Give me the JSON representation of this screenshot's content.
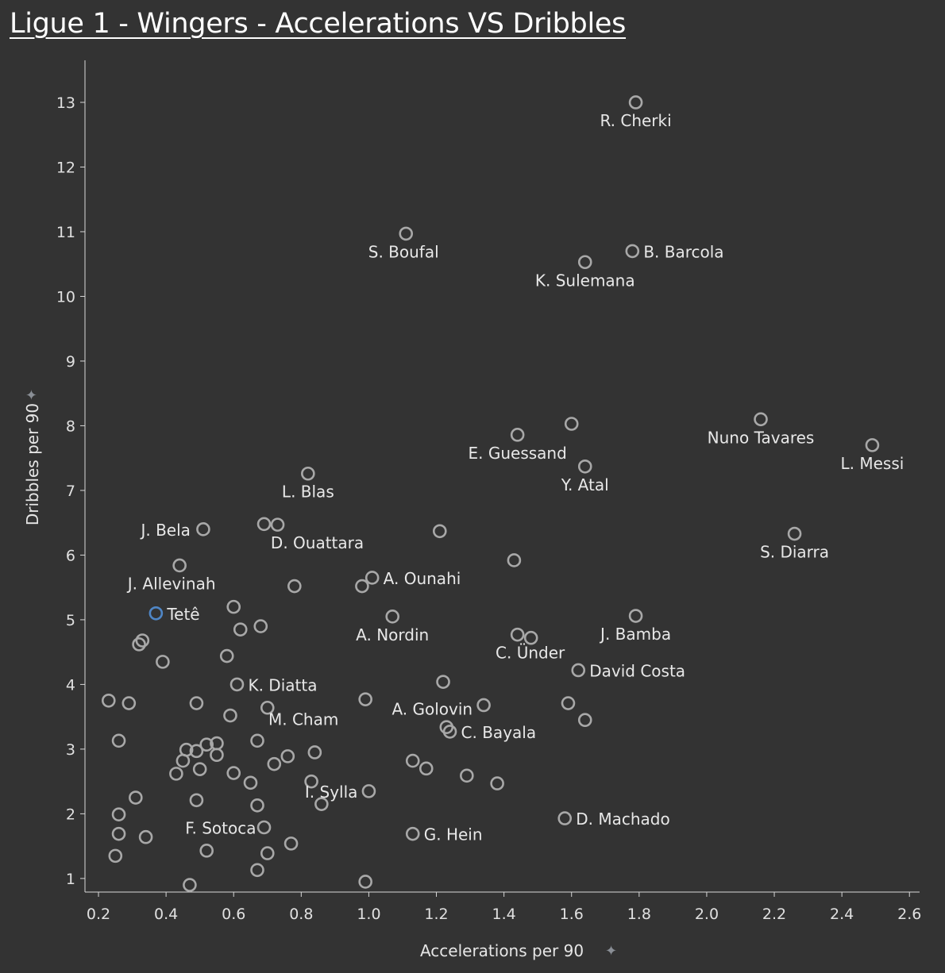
{
  "title": "Ligue 1 - Wingers - Accelerations VS Dribbles",
  "chart_data": {
    "type": "scatter",
    "title": "Ligue 1 - Wingers - Accelerations VS Dribbles",
    "xlabel": "Accelerations per 90",
    "ylabel": "Dribbles per 90",
    "pin_icon": "pin-icon",
    "xlim": [
      0.16,
      2.63
    ],
    "ylim": [
      0.79,
      13.65
    ],
    "xticks": [
      "0.2",
      "0.4",
      "0.6",
      "0.8",
      "1.0",
      "1.2",
      "1.4",
      "1.6",
      "1.8",
      "2.0",
      "2.2",
      "2.4",
      "2.6"
    ],
    "yticks": [
      "1",
      "2",
      "3",
      "4",
      "5",
      "6",
      "7",
      "8",
      "9",
      "10",
      "11",
      "12",
      "13"
    ],
    "grid": false,
    "colors": {
      "point": "#a8a8a8",
      "highlight": "#4f86c6",
      "background": "#333333"
    },
    "points": [
      {
        "x": 1.79,
        "y": 13.0,
        "label": "R. Cherki"
      },
      {
        "x": 1.11,
        "y": 10.97,
        "label": "S. Boufal"
      },
      {
        "x": 1.78,
        "y": 10.7,
        "label": "B. Barcola"
      },
      {
        "x": 1.64,
        "y": 10.53,
        "label": "K. Sulemana"
      },
      {
        "x": 2.16,
        "y": 8.1,
        "label": "Nuno Tavares"
      },
      {
        "x": 2.49,
        "y": 7.7,
        "label": "L. Messi"
      },
      {
        "x": 1.44,
        "y": 7.86,
        "label": "E. Guessand"
      },
      {
        "x": 1.6,
        "y": 8.03
      },
      {
        "x": 1.64,
        "y": 7.37,
        "label": "Y. Atal"
      },
      {
        "x": 0.82,
        "y": 7.26,
        "label": "L. Blas"
      },
      {
        "x": 0.51,
        "y": 6.4,
        "label": "J. Bela"
      },
      {
        "x": 0.69,
        "y": 6.48
      },
      {
        "x": 0.73,
        "y": 6.47,
        "label": "D. Ouattara"
      },
      {
        "x": 1.21,
        "y": 6.37
      },
      {
        "x": 2.26,
        "y": 6.33,
        "label": "S. Diarra"
      },
      {
        "x": 1.43,
        "y": 5.92
      },
      {
        "x": 0.44,
        "y": 5.84,
        "label": "J. Allevinah"
      },
      {
        "x": 1.01,
        "y": 5.65,
        "label": "A. Ounahi"
      },
      {
        "x": 0.98,
        "y": 5.52
      },
      {
        "x": 0.78,
        "y": 5.52
      },
      {
        "x": 0.6,
        "y": 5.2
      },
      {
        "x": 0.37,
        "y": 5.1,
        "label": "Tetê",
        "highlight": true
      },
      {
        "x": 1.07,
        "y": 5.05,
        "label": "A. Nordin"
      },
      {
        "x": 1.79,
        "y": 5.06,
        "label": "J. Bamba"
      },
      {
        "x": 0.68,
        "y": 4.9
      },
      {
        "x": 0.62,
        "y": 4.85
      },
      {
        "x": 1.44,
        "y": 4.77,
        "label": "C. Ünder"
      },
      {
        "x": 1.48,
        "y": 4.72
      },
      {
        "x": 0.33,
        "y": 4.68
      },
      {
        "x": 0.32,
        "y": 4.62
      },
      {
        "x": 0.58,
        "y": 4.44
      },
      {
        "x": 0.39,
        "y": 4.35
      },
      {
        "x": 1.62,
        "y": 4.22,
        "label": "David Costa"
      },
      {
        "x": 1.22,
        "y": 4.04
      },
      {
        "x": 0.61,
        "y": 4.0,
        "label": "K. Diatta"
      },
      {
        "x": 0.99,
        "y": 3.77
      },
      {
        "x": 0.23,
        "y": 3.75
      },
      {
        "x": 0.29,
        "y": 3.71
      },
      {
        "x": 0.49,
        "y": 3.71
      },
      {
        "x": 1.34,
        "y": 3.68,
        "label": "A. Golovin"
      },
      {
        "x": 1.59,
        "y": 3.71
      },
      {
        "x": 0.7,
        "y": 3.64
      },
      {
        "x": 0.59,
        "y": 3.52
      },
      {
        "x": 1.64,
        "y": 3.45
      },
      {
        "x": 1.23,
        "y": 3.34
      },
      {
        "x": 1.24,
        "y": 3.27,
        "label": "C. Bayala"
      },
      {
        "x": 0.26,
        "y": 3.13
      },
      {
        "x": 0.67,
        "y": 3.13,
        "label": "M. Cham"
      },
      {
        "x": 0.52,
        "y": 3.07
      },
      {
        "x": 0.55,
        "y": 3.09
      },
      {
        "x": 0.46,
        "y": 2.99
      },
      {
        "x": 0.49,
        "y": 2.97
      },
      {
        "x": 0.84,
        "y": 2.95
      },
      {
        "x": 0.55,
        "y": 2.91
      },
      {
        "x": 0.76,
        "y": 2.89
      },
      {
        "x": 0.45,
        "y": 2.82
      },
      {
        "x": 1.13,
        "y": 2.82
      },
      {
        "x": 0.72,
        "y": 2.77
      },
      {
        "x": 1.17,
        "y": 2.7
      },
      {
        "x": 0.5,
        "y": 2.69
      },
      {
        "x": 0.43,
        "y": 2.62
      },
      {
        "x": 0.6,
        "y": 2.63
      },
      {
        "x": 1.29,
        "y": 2.59
      },
      {
        "x": 0.83,
        "y": 2.5
      },
      {
        "x": 0.65,
        "y": 2.48
      },
      {
        "x": 1.38,
        "y": 2.47
      },
      {
        "x": 1.0,
        "y": 2.35,
        "label": "I. Sylla"
      },
      {
        "x": 0.31,
        "y": 2.25
      },
      {
        "x": 0.49,
        "y": 2.21
      },
      {
        "x": 0.86,
        "y": 2.15
      },
      {
        "x": 0.67,
        "y": 2.13
      },
      {
        "x": 0.26,
        "y": 1.99
      },
      {
        "x": 1.58,
        "y": 1.93,
        "label": "D. Machado"
      },
      {
        "x": 0.69,
        "y": 1.79,
        "label": "F. Sotoca"
      },
      {
        "x": 0.26,
        "y": 1.69
      },
      {
        "x": 1.13,
        "y": 1.69,
        "label": "G. Hein"
      },
      {
        "x": 0.34,
        "y": 1.64
      },
      {
        "x": 0.77,
        "y": 1.54
      },
      {
        "x": 0.52,
        "y": 1.43
      },
      {
        "x": 0.7,
        "y": 1.39
      },
      {
        "x": 0.25,
        "y": 1.35
      },
      {
        "x": 0.67,
        "y": 1.13
      },
      {
        "x": 0.99,
        "y": 0.95
      },
      {
        "x": 0.47,
        "y": 0.9
      }
    ]
  }
}
